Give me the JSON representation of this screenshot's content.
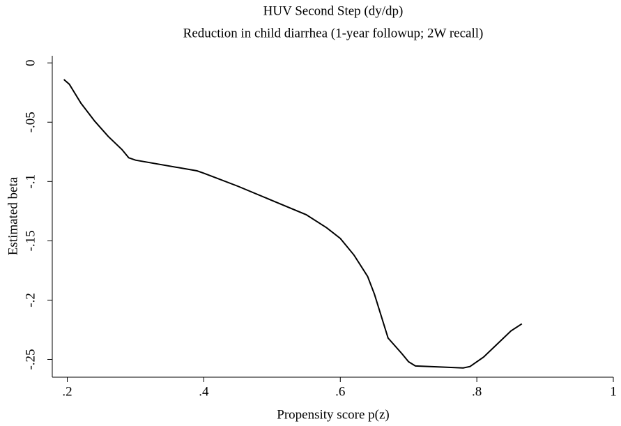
{
  "chart_data": {
    "type": "line",
    "title": "HUV Second Step (dy/dp)",
    "subtitle": "Reduction in child diarrhea (1-year followup; 2W recall)",
    "x_label": "Propensity score p(z)",
    "y_label": "Estimated beta",
    "x": [
      0.195,
      0.203,
      0.22,
      0.24,
      0.26,
      0.28,
      0.29,
      0.3,
      0.39,
      0.4,
      0.45,
      0.5,
      0.55,
      0.58,
      0.6,
      0.62,
      0.64,
      0.65,
      0.67,
      0.69,
      0.7,
      0.71,
      0.75,
      0.78,
      0.79,
      0.81,
      0.83,
      0.85,
      0.866
    ],
    "series": [
      {
        "name": "Estimated beta",
        "color": "#000000",
        "values": [
          -0.014,
          -0.018,
          -0.034,
          -0.049,
          -0.062,
          -0.073,
          -0.08,
          -0.082,
          -0.091,
          -0.093,
          -0.104,
          -0.116,
          -0.128,
          -0.139,
          -0.148,
          -0.162,
          -0.18,
          -0.195,
          -0.232,
          -0.245,
          -0.252,
          -0.2555,
          -0.2565,
          -0.2572,
          -0.256,
          -0.248,
          -0.237,
          -0.226,
          -0.22
        ]
      }
    ],
    "xlim": [
      0.178,
      1.0
    ],
    "ylim": [
      -0.265,
      0.006
    ],
    "xticks": [
      {
        "value": 0.2,
        "label": ".2"
      },
      {
        "value": 0.4,
        "label": ".4"
      },
      {
        "value": 0.6,
        "label": ".6"
      },
      {
        "value": 0.8,
        "label": ".8"
      },
      1
    ],
    "yticks": [
      0,
      {
        "value": -0.05,
        "label": "-.05"
      },
      {
        "value": -0.1,
        "label": "-.1"
      },
      {
        "value": -0.15,
        "label": "-.15"
      },
      {
        "value": -0.2,
        "label": "-.2"
      },
      {
        "value": -0.25,
        "label": "-.25"
      }
    ],
    "grid": false
  }
}
